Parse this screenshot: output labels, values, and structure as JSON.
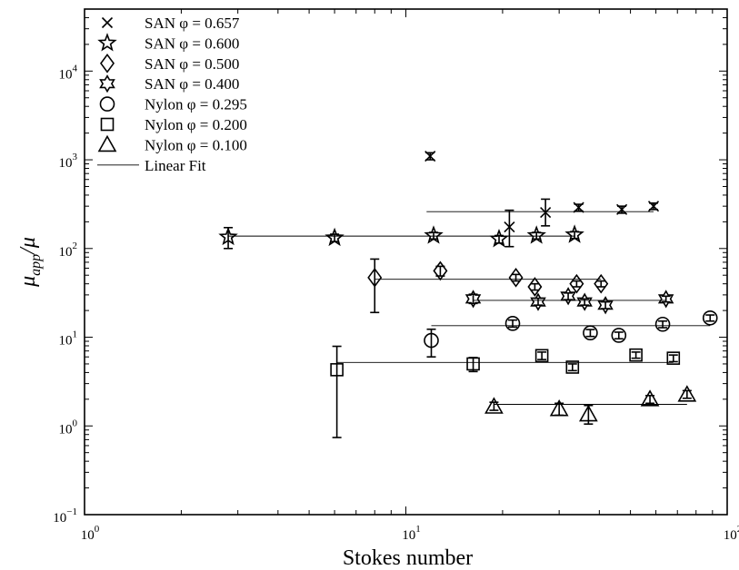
{
  "chart_data": {
    "type": "scatter",
    "xscale": "log",
    "yscale": "log",
    "xlim": [
      1,
      100
    ],
    "ylim": [
      0.1,
      50000
    ],
    "xlabel": "Stokes number",
    "ylabel": "μapp/μ",
    "x_ticks": [
      {
        "value": 1,
        "base": "10",
        "exp": "0"
      },
      {
        "value": 10,
        "base": "10",
        "exp": "1"
      },
      {
        "value": 100,
        "base": "10",
        "exp": "2"
      }
    ],
    "y_ticks": [
      {
        "value": 0.1,
        "base": "10",
        "exp": "−1"
      },
      {
        "value": 1,
        "base": "10",
        "exp": "0"
      },
      {
        "value": 10,
        "base": "10",
        "exp": "1"
      },
      {
        "value": 100,
        "base": "10",
        "exp": "2"
      },
      {
        "value": 1000,
        "base": "10",
        "exp": "3"
      },
      {
        "value": 10000,
        "base": "10",
        "exp": "4"
      }
    ],
    "legend_position": "top-left",
    "series": [
      {
        "name": "SAN φ = 0.657",
        "marker": "x",
        "fit": {
          "x": [
            11.6,
            59
          ],
          "y": 260
        },
        "points": [
          {
            "x": 11.9,
            "y": 1100,
            "lo": 1000,
            "hi": 1200
          },
          {
            "x": 21.0,
            "y": 175,
            "lo": 105,
            "hi": 270
          },
          {
            "x": 27.2,
            "y": 255,
            "lo": 180,
            "hi": 360
          },
          {
            "x": 34.5,
            "y": 290,
            "lo": 265,
            "hi": 315
          },
          {
            "x": 47.0,
            "y": 275,
            "lo": 250,
            "hi": 300
          },
          {
            "x": 59.0,
            "y": 300,
            "lo": 275,
            "hi": 325
          }
        ]
      },
      {
        "name": "SAN φ = 0.600",
        "marker": "star",
        "fit": {
          "x": [
            2.8,
            33.5
          ],
          "y": 138
        },
        "points": [
          {
            "x": 2.8,
            "y": 135,
            "lo": 100,
            "hi": 172
          },
          {
            "x": 6.0,
            "y": 132,
            "lo": 120,
            "hi": 145
          },
          {
            "x": 12.2,
            "y": 140,
            "lo": 128,
            "hi": 152
          },
          {
            "x": 19.5,
            "y": 128,
            "lo": 115,
            "hi": 140
          },
          {
            "x": 25.5,
            "y": 140,
            "lo": 128,
            "hi": 152
          },
          {
            "x": 33.5,
            "y": 143,
            "lo": 130,
            "hi": 155
          }
        ]
      },
      {
        "name": "SAN φ = 0.500",
        "marker": "diamond",
        "fit": {
          "x": [
            8.0,
            40.5
          ],
          "y": 45
        },
        "points": [
          {
            "x": 8.0,
            "y": 47,
            "lo": 19,
            "hi": 76
          },
          {
            "x": 12.8,
            "y": 56,
            "lo": 49,
            "hi": 63
          },
          {
            "x": 22.0,
            "y": 47,
            "lo": 43,
            "hi": 51
          },
          {
            "x": 25.2,
            "y": 37,
            "lo": 34,
            "hi": 40
          },
          {
            "x": 34.0,
            "y": 40,
            "lo": 37,
            "hi": 43
          },
          {
            "x": 40.5,
            "y": 40,
            "lo": 37,
            "hi": 43
          }
        ]
      },
      {
        "name": "SAN φ = 0.400",
        "marker": "hexagram",
        "fit": {
          "x": [
            16.2,
            64.5
          ],
          "y": 26
        },
        "points": [
          {
            "x": 16.2,
            "y": 27,
            "lo": 24,
            "hi": 30.5
          },
          {
            "x": 25.8,
            "y": 25,
            "lo": 23,
            "hi": 27.5
          },
          {
            "x": 32.0,
            "y": 29,
            "lo": 26.5,
            "hi": 31.5
          },
          {
            "x": 36.0,
            "y": 25,
            "lo": 23,
            "hi": 27
          },
          {
            "x": 41.8,
            "y": 23,
            "lo": 21,
            "hi": 25
          },
          {
            "x": 64.5,
            "y": 27,
            "lo": 25,
            "hi": 29
          }
        ]
      },
      {
        "name": "Nylon φ = 0.295",
        "marker": "circle",
        "fit": {
          "x": [
            12.0,
            88.5
          ],
          "y": 13.5
        },
        "points": [
          {
            "x": 12.0,
            "y": 9.2,
            "lo": 6.0,
            "hi": 12.3
          },
          {
            "x": 21.5,
            "y": 14.3,
            "lo": 13.0,
            "hi": 15.6
          },
          {
            "x": 37.5,
            "y": 11.2,
            "lo": 10.2,
            "hi": 12.2
          },
          {
            "x": 46.0,
            "y": 10.5,
            "lo": 9.6,
            "hi": 11.4
          },
          {
            "x": 63.0,
            "y": 14.0,
            "lo": 12.8,
            "hi": 15.2
          },
          {
            "x": 88.5,
            "y": 16.5,
            "lo": 15.2,
            "hi": 17.8
          }
        ]
      },
      {
        "name": "Nylon φ = 0.200",
        "marker": "square",
        "fit": {
          "x": [
            6.1,
            68.0
          ],
          "y": 5.2
        },
        "points": [
          {
            "x": 6.1,
            "y": 4.3,
            "lo": 0.74,
            "hi": 7.9
          },
          {
            "x": 16.2,
            "y": 5.0,
            "lo": 4.1,
            "hi": 5.9
          },
          {
            "x": 26.5,
            "y": 6.2,
            "lo": 5.6,
            "hi": 6.8
          },
          {
            "x": 33.0,
            "y": 4.6,
            "lo": 4.2,
            "hi": 5.0
          },
          {
            "x": 52.0,
            "y": 6.3,
            "lo": 5.8,
            "hi": 6.8
          },
          {
            "x": 68.0,
            "y": 5.8,
            "lo": 5.3,
            "hi": 6.3
          }
        ]
      },
      {
        "name": "Nylon φ = 0.100",
        "marker": "triangle",
        "fit": {
          "x": [
            18.8,
            75.0
          ],
          "y": 1.75
        },
        "points": [
          {
            "x": 18.8,
            "y": 1.65,
            "lo": 1.5,
            "hi": 1.85
          },
          {
            "x": 30.0,
            "y": 1.55,
            "lo": 1.32,
            "hi": 1.8
          },
          {
            "x": 37.0,
            "y": 1.35,
            "lo": 1.05,
            "hi": 1.7
          },
          {
            "x": 57.5,
            "y": 2.0,
            "lo": 1.8,
            "hi": 2.2
          },
          {
            "x": 75.0,
            "y": 2.25,
            "lo": 2.05,
            "hi": 2.5
          }
        ]
      }
    ],
    "legend": [
      {
        "marker": "x",
        "label": "SAN φ = 0.657"
      },
      {
        "marker": "star",
        "label": "SAN φ = 0.600"
      },
      {
        "marker": "diamond",
        "label": "SAN φ = 0.500"
      },
      {
        "marker": "hexagram",
        "label": "SAN φ = 0.400"
      },
      {
        "marker": "circle",
        "label": "Nylon φ = 0.295"
      },
      {
        "marker": "square",
        "label": "Nylon φ = 0.200"
      },
      {
        "marker": "triangle",
        "label": "Nylon φ = 0.100"
      },
      {
        "marker": "line",
        "label": "Linear Fit"
      }
    ]
  }
}
